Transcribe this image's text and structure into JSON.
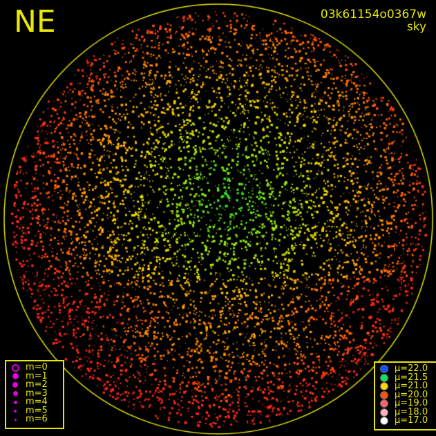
{
  "header": {
    "direction_label": "NE",
    "exposure_id": "03k61154o0367w",
    "image_type": "sky"
  },
  "magnitude_legend": {
    "color": "#e000e0",
    "items": [
      {
        "label": "m=0",
        "style": "ring"
      },
      {
        "label": "m=1",
        "style": "dot"
      },
      {
        "label": "m=2",
        "style": "dot"
      },
      {
        "label": "m=3",
        "style": "dot"
      },
      {
        "label": "m=4",
        "style": "dot"
      },
      {
        "label": "m=5",
        "style": "dot"
      },
      {
        "label": "m=6",
        "style": "dot"
      }
    ]
  },
  "brightness_legend": {
    "items": [
      {
        "label": "μ=22.0",
        "color": "#1050ff"
      },
      {
        "label": "μ=21.5",
        "color": "#10e060"
      },
      {
        "label": "μ=21.0",
        "color": "#ffd800"
      },
      {
        "label": "μ=20.0",
        "color": "#ff5010"
      },
      {
        "label": "μ=19.0",
        "color": "#ff6070"
      },
      {
        "label": "μ=18.0",
        "color": "#ffb0c0"
      },
      {
        "label": "μ=17.0",
        "color": "#ffffff"
      }
    ]
  },
  "horizon_color": "#e8e800"
}
